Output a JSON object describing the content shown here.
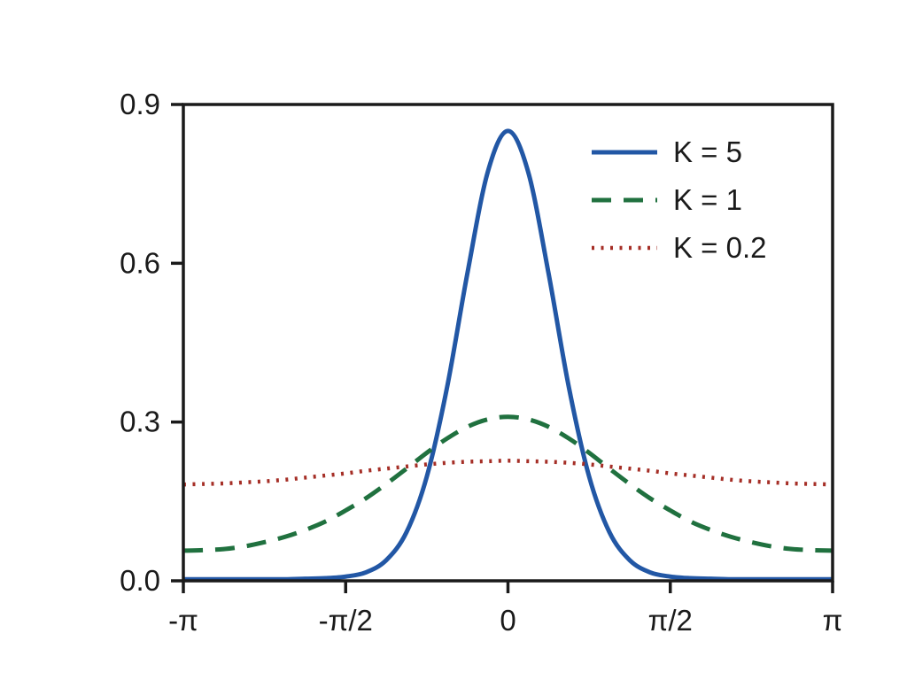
{
  "chart_data": {
    "type": "line",
    "title": "",
    "xlabel": "",
    "ylabel": "",
    "grid": false,
    "xlim": [
      -1,
      1
    ],
    "ylim": [
      0,
      0.9
    ],
    "x_units": "multiples of pi (radians)",
    "x_ticks": [
      {
        "value": -1,
        "label": "-π"
      },
      {
        "value": -0.5,
        "label": "-π/2"
      },
      {
        "value": 0,
        "label": "0"
      },
      {
        "value": 0.5,
        "label": "π/2"
      },
      {
        "value": 1,
        "label": "π"
      }
    ],
    "y_ticks": [
      {
        "value": 0.0,
        "label": "0.0"
      },
      {
        "value": 0.3,
        "label": "0.3"
      },
      {
        "value": 0.6,
        "label": "0.6"
      },
      {
        "value": 0.9,
        "label": "0.9"
      }
    ],
    "x": [
      -1,
      -0.9375,
      -0.875,
      -0.8125,
      -0.75,
      -0.6875,
      -0.625,
      -0.5625,
      -0.5,
      -0.4375,
      -0.375,
      -0.3125,
      -0.25,
      -0.1875,
      -0.125,
      -0.0625,
      0,
      0.0625,
      0.125,
      0.1875,
      0.25,
      0.3125,
      0.375,
      0.4375,
      0.5,
      0.5625,
      0.625,
      0.6875,
      0.75,
      0.8125,
      0.875,
      0.9375,
      1
    ],
    "series": [
      {
        "name": "K = 5",
        "color": "#2257a5",
        "line_style": "solid",
        "line_width": 5,
        "values": [
          0.003,
          0.003,
          0.003,
          0.003,
          0.003,
          0.003,
          0.004,
          0.005,
          0.008,
          0.016,
          0.039,
          0.092,
          0.197,
          0.366,
          0.581,
          0.772,
          0.85,
          0.772,
          0.581,
          0.366,
          0.197,
          0.092,
          0.039,
          0.016,
          0.008,
          0.005,
          0.004,
          0.003,
          0.003,
          0.003,
          0.003,
          0.003,
          0.003
        ]
      },
      {
        "name": "K = 1",
        "color": "#20713f",
        "line_style": "dashed",
        "line_width": 5,
        "values": [
          0.057,
          0.058,
          0.06,
          0.065,
          0.073,
          0.083,
          0.096,
          0.112,
          0.133,
          0.156,
          0.183,
          0.212,
          0.242,
          0.269,
          0.291,
          0.305,
          0.31,
          0.305,
          0.291,
          0.269,
          0.242,
          0.212,
          0.183,
          0.156,
          0.133,
          0.112,
          0.096,
          0.083,
          0.073,
          0.065,
          0.06,
          0.058,
          0.057
        ]
      },
      {
        "name": "K = 0.2",
        "color": "#a52e26",
        "line_style": "dotted",
        "line_width": 4.5,
        "values": [
          0.182,
          0.183,
          0.184,
          0.186,
          0.188,
          0.191,
          0.195,
          0.199,
          0.203,
          0.208,
          0.212,
          0.216,
          0.22,
          0.223,
          0.225,
          0.226,
          0.227,
          0.226,
          0.225,
          0.223,
          0.22,
          0.216,
          0.212,
          0.208,
          0.203,
          0.199,
          0.195,
          0.191,
          0.188,
          0.186,
          0.184,
          0.183,
          0.182
        ]
      }
    ],
    "legend": {
      "position": "upper right",
      "frame": false
    },
    "axis_color": "#1a1a1a"
  }
}
